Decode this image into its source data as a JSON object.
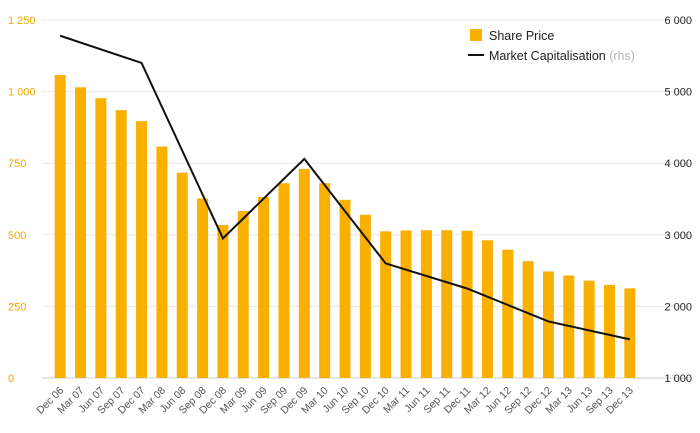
{
  "chart_data": {
    "type": "bar+line",
    "categories": [
      "Dec 06",
      "Mar 07",
      "Jun 07",
      "Sep 07",
      "Dec 07",
      "Mar 08",
      "Jun 08",
      "Sep 08",
      "Dec 08",
      "Mar 09",
      "Jun 09",
      "Sep 09",
      "Dec 09",
      "Mar 10",
      "Jun 10",
      "Sep 10",
      "Dec 10",
      "Mar 11",
      "Jun 11",
      "Sep 11",
      "Dec 11",
      "Mar 12",
      "Jun 12",
      "Sep 12",
      "Dec 12",
      "Mar 13",
      "Jun 13",
      "Sep 13",
      "Dec 13"
    ],
    "series": [
      {
        "name": "Share Price",
        "type": "bar",
        "axis": "left",
        "color": "#f9b000",
        "values": [
          1058,
          1015,
          977,
          935,
          897,
          808,
          717,
          627,
          534,
          583,
          632,
          680,
          730,
          680,
          622,
          570,
          512,
          515,
          516,
          516,
          514,
          481,
          448,
          408,
          372,
          358,
          340,
          325,
          313
        ]
      },
      {
        "name": "Market Capitalisation",
        "name_note": "(rhs)",
        "type": "line",
        "axis": "right",
        "color": "#111111",
        "values": [
          5780,
          null,
          null,
          null,
          5400,
          null,
          null,
          null,
          2950,
          null,
          null,
          null,
          4060,
          null,
          null,
          null,
          2600,
          null,
          null,
          null,
          2250,
          null,
          null,
          null,
          1790,
          null,
          null,
          null,
          1540
        ]
      }
    ],
    "y_left": {
      "range": [
        0,
        1250
      ],
      "ticks": [
        0,
        250,
        500,
        750,
        1000,
        1250
      ],
      "tick_labels": [
        "0",
        "250",
        "500",
        "750",
        "1 000",
        "1 250"
      ]
    },
    "y_right": {
      "range": [
        1000,
        6000
      ],
      "ticks": [
        1000,
        2000,
        3000,
        4000,
        5000,
        6000
      ],
      "tick_labels": [
        "1 000",
        "2 000",
        "3 000",
        "4 000",
        "5 000",
        "6 000"
      ]
    },
    "grid": true,
    "legend_position": "top-right"
  }
}
